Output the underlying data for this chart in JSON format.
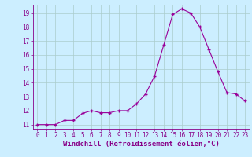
{
  "x": [
    0,
    1,
    2,
    3,
    4,
    5,
    6,
    7,
    8,
    9,
    10,
    11,
    12,
    13,
    14,
    15,
    16,
    17,
    18,
    19,
    20,
    21,
    22,
    23
  ],
  "y": [
    11,
    11,
    11,
    11.3,
    11.3,
    11.8,
    12,
    11.85,
    11.85,
    12,
    12,
    12.5,
    13.2,
    14.5,
    16.7,
    18.9,
    19.3,
    19.0,
    18.0,
    16.4,
    14.8,
    13.3,
    13.2,
    12.7
  ],
  "xlabel": "Windchill (Refroidissement éolien,°C)",
  "line_color": "#990099",
  "marker": "+",
  "marker_size": 4,
  "bg_color": "#cceeff",
  "grid_color": "#aacccc",
  "ylim": [
    10.7,
    19.6
  ],
  "xlim": [
    -0.5,
    23.5
  ],
  "yticks": [
    11,
    12,
    13,
    14,
    15,
    16,
    17,
    18,
    19
  ],
  "xticks": [
    0,
    1,
    2,
    3,
    4,
    5,
    6,
    7,
    8,
    9,
    10,
    11,
    12,
    13,
    14,
    15,
    16,
    17,
    18,
    19,
    20,
    21,
    22,
    23
  ],
  "tick_label_fontsize": 5.5,
  "xlabel_fontsize": 6.5,
  "label_color": "#880088"
}
